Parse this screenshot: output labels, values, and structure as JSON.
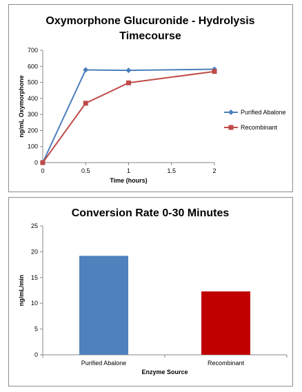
{
  "chart_data": [
    {
      "type": "line",
      "title_lines": [
        "Oxymorphone Glucuronide - Hydrolysis",
        "Timecourse"
      ],
      "xlabel": "Time (hours)",
      "ylabel": "ng/mL Oxymorphone",
      "xlim": [
        0,
        2
      ],
      "ylim": [
        0,
        700
      ],
      "xticks": [
        0,
        0.5,
        1,
        1.5,
        2
      ],
      "yticks": [
        0,
        100,
        200,
        300,
        400,
        500,
        600,
        700
      ],
      "x": [
        0,
        0.5,
        1,
        2
      ],
      "series": [
        {
          "name": "Purified Abalone",
          "values": [
            0,
            578,
            575,
            582
          ],
          "color": "#4a7ebb",
          "marker": "diamond"
        },
        {
          "name": "Recombinant",
          "values": [
            0,
            370,
            497,
            568
          ],
          "color": "#be4b48",
          "marker": "square"
        }
      ],
      "grid": false,
      "legend": "right"
    },
    {
      "type": "bar",
      "title": "Conversion Rate 0-30 Minutes",
      "xlabel": "Enzyme Source",
      "ylabel": "ng/mL/min",
      "ylim": [
        0,
        25
      ],
      "yticks": [
        0,
        5,
        10,
        15,
        20,
        25
      ],
      "categories": [
        "Purified Abalone",
        "Recombinant"
      ],
      "values": [
        19.2,
        12.3
      ],
      "colors": [
        "#4f81bd",
        "#c00000"
      ],
      "grid": false,
      "legend": "none"
    }
  ]
}
